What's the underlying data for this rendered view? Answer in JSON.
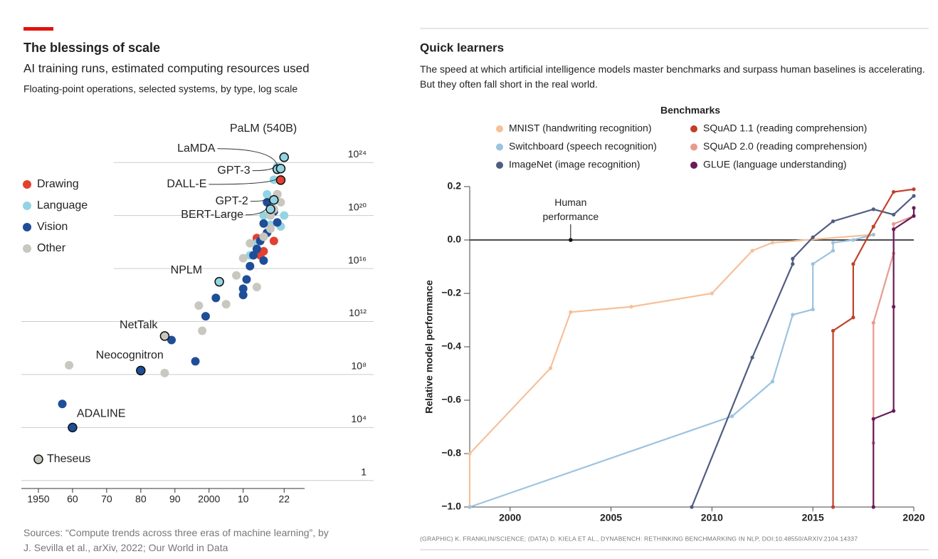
{
  "chart_data": [
    {
      "type": "scatter",
      "title": "The blessings of scale",
      "subtitle": "AI training runs, estimated computing resources used",
      "note": "Floating-point operations, selected systems, by type, log scale",
      "source": "Sources: “Compute trends across three eras of machine learning”, by J. Sevilla et al., arXiv, 2022; Our World in Data",
      "ylog": true,
      "grid": true,
      "legend": "top-left",
      "xlim": [
        1945,
        2028
      ],
      "xticks": [
        1950,
        {
          "value": 1960,
          "label": "60"
        },
        {
          "value": 1970,
          "label": "70"
        },
        {
          "value": 1980,
          "label": "80"
        },
        {
          "value": 1990,
          "label": "90"
        },
        2000,
        {
          "value": 2010,
          "label": "10"
        },
        {
          "value": 2022,
          "label": "22"
        }
      ],
      "ylim": [
        0.25,
        1e+26
      ],
      "yticks": [
        1,
        {
          "value": 10000.0,
          "label": "10⁴"
        },
        {
          "value": 100000000.0,
          "label": "10⁸"
        },
        {
          "value": 1000000000000.0,
          "label": "10¹²"
        },
        {
          "value": 1e+16,
          "label": "10¹⁶"
        },
        {
          "value": 1e+20,
          "label": "10²⁰"
        },
        {
          "value": 1e+24,
          "label": "10²⁴"
        }
      ],
      "series": [
        {
          "name": "Drawing",
          "color": "#e3412f",
          "x": [
            2014,
            2016,
            2015,
            2017,
            2018,
            2019,
            2021,
            2020
          ],
          "values": [
            2e+18,
            2e+17,
            1e+17,
            5e+18,
            3e+20,
            1.2e+18,
            4.7e+22,
            4e+21
          ],
          "labels": [
            null,
            null,
            null,
            null,
            null,
            null,
            "DALL-E",
            null
          ]
        },
        {
          "name": "Language",
          "color": "#93d4e4",
          "x": [
            2003,
            2012,
            2014,
            2016,
            2017,
            2018,
            2019,
            2019,
            2020,
            2020,
            2021,
            2022,
            2021,
            2022,
            2018
          ],
          "values": [
            1000000000000000.0,
            1e+17,
            8e+17,
            1e+20,
            4e+21,
            3e+20,
            1.5e+21,
            5e+22,
            5e+23,
            3.1e+23,
            3.5e+23,
            2.5e+24,
            1.5e+19,
            1e+20,
            2e+19
          ],
          "labels": [
            "NPLM",
            null,
            null,
            null,
            null,
            "BERT-Large",
            "GPT-2",
            null,
            null,
            "GPT-3",
            "LaMDA",
            "PaLM (540B)",
            null,
            null,
            null
          ]
        },
        {
          "name": "Vision",
          "color": "#1f4e99",
          "x": [
            1957,
            1960,
            1980,
            1989,
            1996,
            1999,
            2002,
            2010,
            2010,
            2011,
            2012,
            2013,
            2014,
            2015,
            2016,
            2017,
            2016,
            2019,
            2017,
            2020
          ],
          "values": [
            600000.0,
            10000.0,
            200000000.0,
            40000000000.0,
            1000000000.0,
            2500000000000.0,
            60000000000000.0,
            100000000000000.0,
            300000000000000.0,
            1500000000000000.0,
            1.5e+16,
            1e+17,
            3e+17,
            1.2e+18,
            4e+16,
            5e+18,
            2.5e+19,
            2e+20,
            1e+21,
            3e+19
          ],
          "labels": [
            null,
            "ADALINE",
            "Neocognitron",
            null,
            null,
            null,
            null,
            null,
            null,
            null,
            null,
            null,
            null,
            null,
            null,
            null,
            null,
            null,
            null,
            null
          ]
        },
        {
          "name": "Other",
          "color": "#c8c8c0",
          "x": [
            1959,
            1950,
            1987,
            1998,
            1997,
            2005,
            2008,
            2014,
            2010,
            2012,
            2016,
            2018,
            2019,
            2020,
            2018,
            2021,
            1987
          ],
          "values": [
            500000000.0,
            40,
            130000000.0,
            200000000000.0,
            16000000000000.0,
            20000000000000.0,
            3000000000000000.0,
            400000000000000.0,
            6e+16,
            8e+17,
            2.5e+18,
            1e+20,
            3e+20,
            4e+21,
            1e+19,
            1e+21,
            80000000000.0
          ],
          "labels": [
            null,
            "Theseus",
            null,
            null,
            null,
            null,
            null,
            null,
            null,
            null,
            null,
            null,
            null,
            null,
            null,
            null,
            "NetTalk"
          ]
        }
      ]
    },
    {
      "type": "line",
      "title": "Quick learners",
      "subtitle": "The speed at which artificial intelligence models master benchmarks and surpass human baselines is accelerating. But they often fall short in the real world.",
      "legend_title": "Benchmarks",
      "ylabel": "Relative model performance",
      "source": "(GRAPHIC) K. FRANKLIN/SCIENCE; (DATA) D. KIELA ET AL., DYNABENCH: RETHINKING BENCHMARKING IN NLP, DOI:10.48550/ARXIV.2104.14337",
      "annotation": {
        "text": "Human performance",
        "x": 2003,
        "y": 0
      },
      "xlim": [
        1998,
        2020
      ],
      "xticks": [
        2000,
        2005,
        2010,
        2015,
        2020
      ],
      "ylim": [
        -1,
        0.2
      ],
      "yticks": [
        0.2,
        {
          "value": 0,
          "label": "0.0"
        },
        {
          "value": -0.2,
          "label": "−0.2"
        },
        {
          "value": -0.4,
          "label": "−0.4"
        },
        {
          "value": -0.6,
          "label": "−0.6"
        },
        {
          "value": -0.8,
          "label": "−0.8"
        },
        {
          "value": -1,
          "label": "−1.0"
        }
      ],
      "series": [
        {
          "name": "MNIST (handwriting recognition)",
          "color": "#f5c09a",
          "x": [
            1998,
            1998,
            2002,
            2003,
            2006,
            2010,
            2012,
            2013,
            2018
          ],
          "values": [
            -1,
            -0.8,
            -0.48,
            -0.27,
            -0.25,
            -0.2,
            -0.04,
            -0.01,
            0.02
          ]
        },
        {
          "name": "Switchboard (speech recognition)",
          "color": "#9cc3e0",
          "x": [
            1998,
            2011,
            2013,
            2014,
            2015,
            2015,
            2016,
            2016,
            2017,
            2018
          ],
          "values": [
            -1,
            -0.66,
            -0.53,
            -0.28,
            -0.26,
            -0.09,
            -0.04,
            -0.01,
            0,
            0.02
          ]
        },
        {
          "name": "ImageNet (image recognition)",
          "color": "#4f5d82",
          "x": [
            2009,
            2012,
            2014,
            2014,
            2015,
            2016,
            2018,
            2019,
            2020
          ],
          "values": [
            -1,
            -0.44,
            -0.09,
            -0.07,
            0.01,
            0.07,
            0.115,
            0.095,
            0.165
          ]
        },
        {
          "name": "SQuAD 1.1 (reading comprehension)",
          "color": "#c2412b",
          "x": [
            2016,
            2016,
            2017,
            2017,
            2018,
            2019,
            2020
          ],
          "values": [
            -1,
            -0.34,
            -0.29,
            -0.09,
            0.05,
            0.18,
            0.19
          ]
        },
        {
          "name": "SQuAD 2.0 (reading comprehension)",
          "color": "#e89a8f",
          "x": [
            2018,
            2018,
            2019,
            2019,
            2020
          ],
          "values": [
            -0.76,
            -0.31,
            -0.05,
            0.06,
            0.09
          ]
        },
        {
          "name": "GLUE (language understanding)",
          "color": "#6a1b58",
          "x": [
            2018,
            2018,
            2019,
            2019,
            2019,
            2020,
            2020
          ],
          "values": [
            -1,
            -0.67,
            -0.64,
            -0.25,
            0.04,
            0.09,
            0.12
          ]
        }
      ]
    }
  ]
}
